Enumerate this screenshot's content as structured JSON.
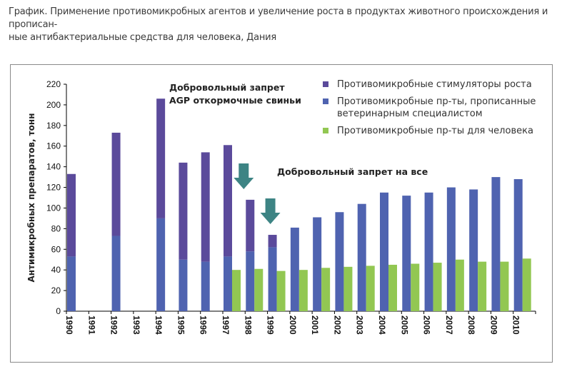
{
  "caption": {
    "line1": "График. Применение противомикробных агентов и увеличение роста в продуктах животного происхождения и прописан-",
    "line2": "ные антибактериальные средства для человека, Дания"
  },
  "chart_data": {
    "type": "bar",
    "ylabel": "Антимикробных препаратов, тонн",
    "ylim": [
      0,
      220
    ],
    "yticks": [
      0,
      20,
      40,
      60,
      80,
      100,
      120,
      140,
      160,
      180,
      200,
      220
    ],
    "categories": [
      "1990",
      "1991",
      "1992",
      "1993",
      "1994",
      "1995",
      "1996",
      "1997",
      "1998",
      "1999",
      "2000",
      "2001",
      "2002",
      "2003",
      "2004",
      "2005",
      "2006",
      "2007",
      "2008",
      "2009",
      "2010"
    ],
    "series": [
      {
        "name": "Противомикробные стимуляторы роста",
        "color": "#5b4a9b",
        "values": [
          80,
          null,
          100,
          null,
          116,
          94,
          106,
          108,
          50,
          12,
          0,
          0,
          0,
          0,
          0,
          0,
          0,
          0,
          0,
          0,
          0
        ]
      },
      {
        "name": "Противомикробные пр-ты, прописанные ветеринарным специалистом",
        "color": "#4f63b0",
        "values": [
          53,
          null,
          73,
          null,
          90,
          50,
          48,
          53,
          58,
          62,
          81,
          91,
          96,
          104,
          115,
          112,
          115,
          120,
          118,
          130,
          128
        ]
      },
      {
        "name": "Противомикробные пр-ты для человека",
        "color": "#92c752",
        "values": [
          null,
          null,
          null,
          null,
          null,
          null,
          null,
          40,
          41,
          39,
          40,
          42,
          43,
          44,
          45,
          46,
          47,
          50,
          48,
          48,
          51
        ]
      }
    ],
    "legend_position": "top-right",
    "annotations": [
      {
        "lines": [
          "Добровольный запрет",
          "AGP откормочные свиньи"
        ],
        "arrow_at": "1998"
      },
      {
        "lines": [
          "Добровольный запрет на все"
        ],
        "arrow_at": "1999"
      }
    ],
    "arrow_color": "#3d8484",
    "grid": false
  }
}
